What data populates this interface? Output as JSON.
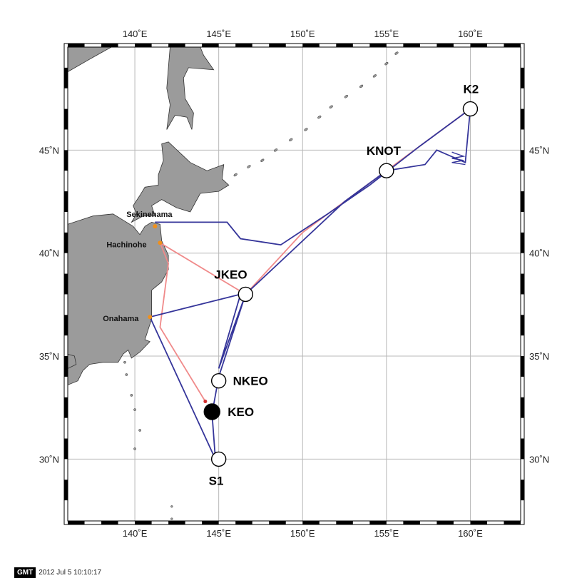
{
  "map": {
    "lon_ticks": [
      "140˚E",
      "145˚E",
      "150˚E",
      "155˚E",
      "160˚E"
    ],
    "lat_ticks": [
      "45˚N",
      "40˚N",
      "35˚N",
      "30˚N"
    ],
    "lon_range": [
      136,
      163
    ],
    "lat_range": [
      27,
      50
    ],
    "grid": true,
    "colors": {
      "land": "#9b9b9b",
      "coast": "#333333",
      "outbound_track": "#35359a",
      "return_track": "#f08a8a",
      "port_marker": "#f0901c",
      "grid": "#b8b8b8"
    }
  },
  "stations": [
    {
      "id": "K2",
      "label": "K2",
      "lon": 160.0,
      "lat": 47.0,
      "filled": false
    },
    {
      "id": "KNOT",
      "label": "KNOT",
      "lon": 155.0,
      "lat": 44.0,
      "filled": false
    },
    {
      "id": "JKEO",
      "label": "JKEO",
      "lon": 146.6,
      "lat": 38.0,
      "filled": false
    },
    {
      "id": "NKEO",
      "label": "NKEO",
      "lon": 145.0,
      "lat": 33.8,
      "filled": false
    },
    {
      "id": "KEO",
      "label": "KEO",
      "lon": 144.6,
      "lat": 32.3,
      "filled": true
    },
    {
      "id": "S1",
      "label": "S1",
      "lon": 145.0,
      "lat": 30.0,
      "filled": false
    }
  ],
  "ports": [
    {
      "id": "sekinehama",
      "label": "Sekinehama",
      "lon": 141.2,
      "lat": 41.3
    },
    {
      "id": "hachinohe",
      "label": "Hachinohe",
      "lon": 141.5,
      "lat": 40.5
    },
    {
      "id": "onahama",
      "label": "Onahama",
      "lon": 140.9,
      "lat": 36.9
    }
  ],
  "tracks": {
    "outbound": [
      [
        141.2,
        41.5
      ],
      [
        145.5,
        41.5
      ],
      [
        146.3,
        40.7
      ],
      [
        148.7,
        40.4
      ],
      [
        150.0,
        41.1
      ],
      [
        151.5,
        41.9
      ],
      [
        154.0,
        43.3
      ],
      [
        157.0,
        45.2
      ],
      [
        160.0,
        47.0
      ],
      [
        159.7,
        44.4
      ],
      [
        158.0,
        45.0
      ],
      [
        157.3,
        44.3
      ],
      [
        155.0,
        44.0
      ],
      [
        152.5,
        42.5
      ],
      [
        146.6,
        38.0
      ],
      [
        145.0,
        34.4
      ],
      [
        146.3,
        38.0
      ],
      [
        140.9,
        36.9
      ],
      [
        144.8,
        30.0
      ],
      [
        144.6,
        32.2
      ],
      [
        145.0,
        34.0
      ],
      [
        146.6,
        38.0
      ]
    ],
    "return": [
      [
        160.0,
        47.0
      ],
      [
        155.0,
        44.0
      ],
      [
        150.0,
        41.0
      ],
      [
        146.6,
        38.0
      ],
      [
        141.5,
        40.5
      ],
      [
        142.0,
        39.5
      ],
      [
        141.5,
        36.4
      ],
      [
        144.2,
        32.8
      ]
    ]
  },
  "footer": {
    "logo": "GMT",
    "timestamp": "2012 Jul  5 10:10:17"
  }
}
